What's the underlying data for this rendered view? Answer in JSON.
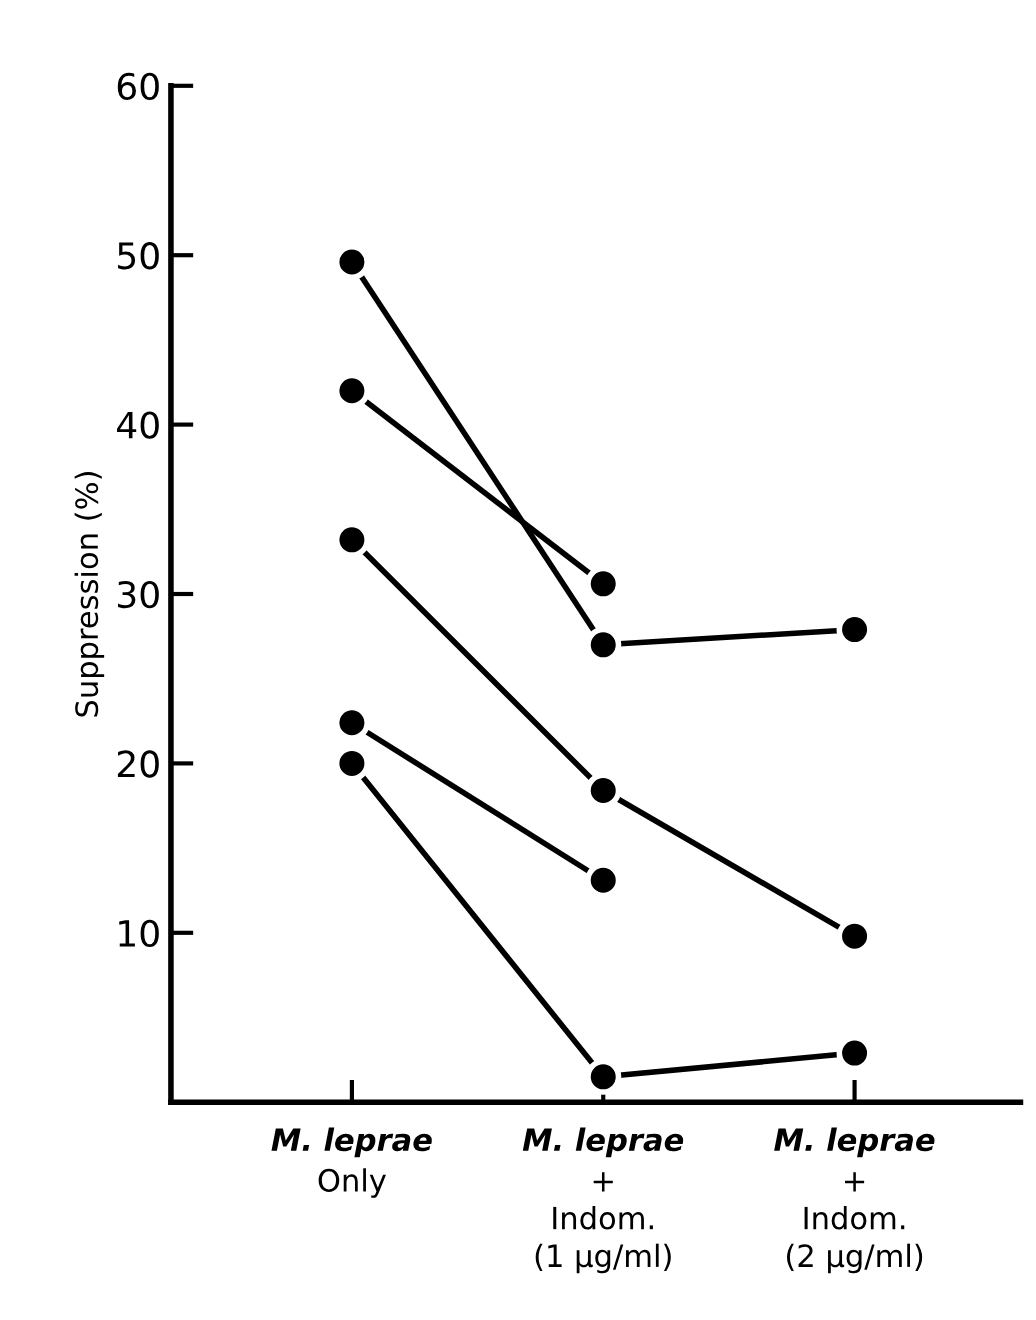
{
  "chart_data": {
    "type": "line",
    "ylabel": "Suppression (%)",
    "categories": [
      "M. leprae\nOnly",
      "M. leprae\n+\nIndom.\n(1 μg/ml)",
      "M. leprae\n+\nIndom.\n(2 μg/ml)"
    ],
    "series": [
      {
        "color": "#000000",
        "values": [
          49.6,
          27.0,
          27.9
        ]
      },
      {
        "color": "#000000",
        "values": [
          42.0,
          30.6,
          null
        ]
      },
      {
        "color": "#000000",
        "values": [
          33.2,
          18.4,
          9.8
        ]
      },
      {
        "color": "#000000",
        "values": [
          22.4,
          13.1,
          null
        ]
      },
      {
        "color": "#000000",
        "values": [
          20.0,
          1.5,
          2.9
        ]
      }
    ],
    "ylim": [
      0,
      60
    ],
    "yticks": [
      10,
      20,
      30,
      40,
      50,
      60
    ],
    "grid": false,
    "legend": false,
    "marker": "circle",
    "line_style": "solid"
  }
}
